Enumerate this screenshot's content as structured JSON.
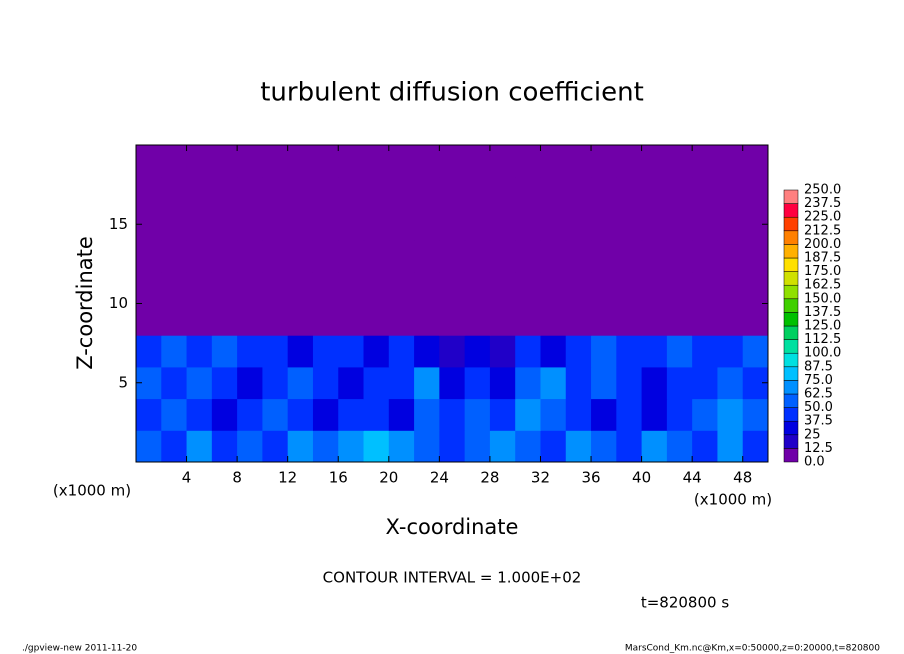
{
  "chart_data": {
    "type": "contour",
    "title": "turbulent diffusion coefficient",
    "xlabel": "X-coordinate",
    "ylabel": "Z-coordinate",
    "x_unit_label": "(x1000 m)",
    "y_unit_label": "(x1000 m)",
    "xlim": [
      0,
      50
    ],
    "ylim": [
      0,
      20
    ],
    "xticks": [
      4,
      8,
      12,
      16,
      20,
      24,
      28,
      32,
      36,
      40,
      44,
      48
    ],
    "yticks": [
      5,
      10,
      15
    ],
    "x": [
      1,
      3,
      5,
      7,
      9,
      11,
      13,
      15,
      17,
      19,
      21,
      23,
      25,
      27,
      29,
      31,
      33,
      35,
      37,
      39,
      41,
      43,
      45,
      47,
      49
    ],
    "y": [
      1,
      3,
      5,
      7,
      9,
      11,
      13,
      15,
      17,
      19
    ],
    "z": [
      [
        50,
        37.5,
        62.5,
        37.5,
        50,
        37.5,
        62.5,
        50,
        62.5,
        75,
        62.5,
        50,
        37.5,
        50,
        62.5,
        50,
        37.5,
        62.5,
        50,
        37.5,
        62.5,
        50,
        37.5,
        62.5,
        37.5
      ],
      [
        37.5,
        50,
        37.5,
        25,
        37.5,
        50,
        37.5,
        25,
        37.5,
        37.5,
        25,
        50,
        37.5,
        50,
        37.5,
        62.5,
        50,
        37.5,
        25,
        37.5,
        25,
        37.5,
        50,
        62.5,
        50
      ],
      [
        50,
        37.5,
        50,
        37.5,
        25,
        37.5,
        50,
        37.5,
        25,
        37.5,
        37.5,
        62.5,
        25,
        37.5,
        25,
        50,
        62.5,
        37.5,
        50,
        37.5,
        25,
        37.5,
        37.5,
        50,
        37.5
      ],
      [
        37.5,
        50,
        37.5,
        50,
        37.5,
        37.5,
        25,
        37.5,
        37.5,
        25,
        37.5,
        25,
        12.5,
        25,
        12.5,
        37.5,
        25,
        37.5,
        50,
        37.5,
        37.5,
        50,
        37.5,
        37.5,
        50
      ],
      [
        0,
        0,
        0,
        0,
        0,
        0,
        0,
        0,
        0,
        0,
        0,
        0,
        0,
        0,
        0,
        0,
        0,
        0,
        0,
        0,
        0,
        0,
        0,
        0,
        0
      ],
      [
        0,
        0,
        0,
        0,
        0,
        0,
        0,
        0,
        0,
        0,
        0,
        0,
        0,
        0,
        0,
        0,
        0,
        0,
        0,
        0,
        0,
        0,
        0,
        0,
        0
      ],
      [
        0,
        0,
        0,
        0,
        0,
        0,
        0,
        0,
        0,
        0,
        0,
        0,
        0,
        0,
        0,
        0,
        0,
        0,
        0,
        0,
        0,
        0,
        0,
        0,
        0
      ],
      [
        0,
        0,
        0,
        0,
        0,
        0,
        0,
        0,
        0,
        0,
        0,
        0,
        0,
        0,
        0,
        0,
        0,
        0,
        0,
        0,
        0,
        0,
        0,
        0,
        0
      ],
      [
        0,
        0,
        0,
        0,
        0,
        0,
        0,
        0,
        0,
        0,
        0,
        0,
        0,
        0,
        0,
        0,
        0,
        0,
        0,
        0,
        0,
        0,
        0,
        0,
        0
      ],
      [
        0,
        0,
        0,
        0,
        0,
        0,
        0,
        0,
        0,
        0,
        0,
        0,
        0,
        0,
        0,
        0,
        0,
        0,
        0,
        0,
        0,
        0,
        0,
        0,
        0
      ]
    ],
    "levels": [
      {
        "value": 0,
        "label": "0.0"
      },
      12.5,
      25.0,
      37.5,
      {
        "value": 50,
        "label": "50.0"
      },
      62.5,
      {
        "value": 75,
        "label": "75.0"
      },
      87.5,
      {
        "value": 100,
        "label": "100.0"
      },
      112.5,
      {
        "value": 125,
        "label": "125.0"
      },
      137.5,
      {
        "value": 150,
        "label": "150.0"
      },
      162.5,
      {
        "value": 175,
        "label": "175.0"
      },
      187.5,
      {
        "value": 200,
        "label": "200.0"
      },
      212.5,
      {
        "value": 225,
        "label": "225.0"
      },
      237.5,
      {
        "value": 250,
        "label": "250.0"
      }
    ],
    "colors": [
      "#7000a8",
      "#2000c8",
      "#0000e0",
      "#0030ff",
      "#0060ff",
      "#0090ff",
      "#00c0ff",
      "#00e0e0",
      "#00e0a0",
      "#00d060",
      "#00c000",
      "#40d000",
      "#90e000",
      "#d0e000",
      "#ffe000",
      "#ffb000",
      "#ff8000",
      "#ff4000",
      "#ff0040",
      "#ff8080"
    ],
    "annotations": [
      "CONTOUR INTERVAL = 1.000E+02",
      "t=820800 s"
    ],
    "footer_left": "./gpview-new  2011-11-20",
    "footer_right": "MarsCond_Km.nc@Km,x=0:50000,z=0:20000,t=820800"
  }
}
